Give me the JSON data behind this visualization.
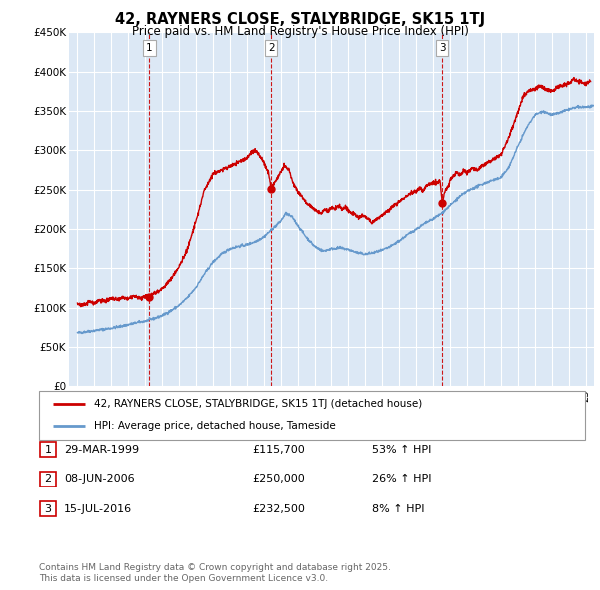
{
  "title": "42, RAYNERS CLOSE, STALYBRIDGE, SK15 1TJ",
  "subtitle": "Price paid vs. HM Land Registry's House Price Index (HPI)",
  "background_color": "#ffffff",
  "plot_bg_color": "#dce8f5",
  "grid_color": "#ffffff",
  "ylim": [
    0,
    450000
  ],
  "yticks": [
    0,
    50000,
    100000,
    150000,
    200000,
    250000,
    300000,
    350000,
    400000,
    450000
  ],
  "ytick_labels": [
    "£0",
    "£50K",
    "£100K",
    "£150K",
    "£200K",
    "£250K",
    "£300K",
    "£350K",
    "£400K",
    "£450K"
  ],
  "xlim_start": 1994.5,
  "xlim_end": 2025.5,
  "red_line_color": "#cc0000",
  "blue_line_color": "#6699cc",
  "blue_fill_color": "#dce8f5",
  "transactions": [
    {
      "num": 1,
      "date": "29-MAR-1999",
      "price": "115,700",
      "pct": "53%",
      "year": 1999.24
    },
    {
      "num": 2,
      "date": "08-JUN-2006",
      "price": "250,000",
      "pct": "26%",
      "year": 2006.44
    },
    {
      "num": 3,
      "date": "15-JUL-2016",
      "price": "232,500",
      "pct": "8%",
      "year": 2016.54
    }
  ],
  "legend_label_red": "42, RAYNERS CLOSE, STALYBRIDGE, SK15 1TJ (detached house)",
  "legend_label_blue": "HPI: Average price, detached house, Tameside",
  "footer1": "Contains HM Land Registry data © Crown copyright and database right 2025.",
  "footer2": "This data is licensed under the Open Government Licence v3.0.",
  "hpi_anchors": [
    [
      1995.0,
      68000
    ],
    [
      1995.5,
      69500
    ],
    [
      1996.0,
      71000
    ],
    [
      1996.5,
      72500
    ],
    [
      1997.0,
      74000
    ],
    [
      1997.5,
      76000
    ],
    [
      1998.0,
      78500
    ],
    [
      1998.5,
      81000
    ],
    [
      1999.0,
      83000
    ],
    [
      1999.5,
      86000
    ],
    [
      2000.0,
      90000
    ],
    [
      2000.5,
      96000
    ],
    [
      2001.0,
      103000
    ],
    [
      2001.5,
      113000
    ],
    [
      2002.0,
      126000
    ],
    [
      2002.5,
      143000
    ],
    [
      2003.0,
      158000
    ],
    [
      2003.5,
      168000
    ],
    [
      2004.0,
      175000
    ],
    [
      2004.5,
      178000
    ],
    [
      2005.0,
      180000
    ],
    [
      2005.5,
      184000
    ],
    [
      2006.0,
      190000
    ],
    [
      2006.5,
      200000
    ],
    [
      2007.0,
      210000
    ],
    [
      2007.3,
      220000
    ],
    [
      2007.7,
      215000
    ],
    [
      2008.0,
      205000
    ],
    [
      2008.5,
      190000
    ],
    [
      2009.0,
      178000
    ],
    [
      2009.5,
      172000
    ],
    [
      2010.0,
      175000
    ],
    [
      2010.5,
      176000
    ],
    [
      2011.0,
      174000
    ],
    [
      2011.5,
      170000
    ],
    [
      2012.0,
      168000
    ],
    [
      2012.5,
      170000
    ],
    [
      2013.0,
      173000
    ],
    [
      2013.5,
      178000
    ],
    [
      2014.0,
      185000
    ],
    [
      2014.5,
      193000
    ],
    [
      2015.0,
      200000
    ],
    [
      2015.5,
      207000
    ],
    [
      2016.0,
      213000
    ],
    [
      2016.5,
      220000
    ],
    [
      2017.0,
      230000
    ],
    [
      2017.5,
      240000
    ],
    [
      2018.0,
      248000
    ],
    [
      2018.5,
      253000
    ],
    [
      2019.0,
      258000
    ],
    [
      2019.5,
      262000
    ],
    [
      2020.0,
      265000
    ],
    [
      2020.5,
      280000
    ],
    [
      2021.0,
      305000
    ],
    [
      2021.5,
      328000
    ],
    [
      2022.0,
      345000
    ],
    [
      2022.5,
      350000
    ],
    [
      2023.0,
      345000
    ],
    [
      2023.5,
      348000
    ],
    [
      2024.0,
      352000
    ],
    [
      2024.5,
      355000
    ],
    [
      2025.0,
      355000
    ],
    [
      2025.5,
      356000
    ]
  ],
  "red_anchors": [
    [
      1995.0,
      105000
    ],
    [
      1995.3,
      103000
    ],
    [
      1995.7,
      108000
    ],
    [
      1996.0,
      106000
    ],
    [
      1996.3,
      110000
    ],
    [
      1996.7,
      108000
    ],
    [
      1997.0,
      112000
    ],
    [
      1997.3,
      110000
    ],
    [
      1997.7,
      113000
    ],
    [
      1998.0,
      111000
    ],
    [
      1998.3,
      115000
    ],
    [
      1998.7,
      112000
    ],
    [
      1999.0,
      114000
    ],
    [
      1999.24,
      115700
    ],
    [
      1999.5,
      118000
    ],
    [
      2000.0,
      124000
    ],
    [
      2000.5,
      136000
    ],
    [
      2001.0,
      152000
    ],
    [
      2001.5,
      175000
    ],
    [
      2002.0,
      210000
    ],
    [
      2002.5,
      250000
    ],
    [
      2003.0,
      270000
    ],
    [
      2003.5,
      275000
    ],
    [
      2004.0,
      280000
    ],
    [
      2004.5,
      285000
    ],
    [
      2005.0,
      290000
    ],
    [
      2005.3,
      298000
    ],
    [
      2005.5,
      300000
    ],
    [
      2005.7,
      295000
    ],
    [
      2006.0,
      285000
    ],
    [
      2006.3,
      270000
    ],
    [
      2006.44,
      250000
    ],
    [
      2006.6,
      258000
    ],
    [
      2007.0,
      272000
    ],
    [
      2007.2,
      280000
    ],
    [
      2007.5,
      275000
    ],
    [
      2007.7,
      260000
    ],
    [
      2008.0,
      248000
    ],
    [
      2008.3,
      240000
    ],
    [
      2008.6,
      232000
    ],
    [
      2009.0,
      225000
    ],
    [
      2009.2,
      222000
    ],
    [
      2009.4,
      220000
    ],
    [
      2009.6,
      225000
    ],
    [
      2009.8,
      222000
    ],
    [
      2010.0,
      228000
    ],
    [
      2010.2,
      225000
    ],
    [
      2010.4,
      230000
    ],
    [
      2010.6,
      225000
    ],
    [
      2010.8,
      228000
    ],
    [
      2011.0,
      224000
    ],
    [
      2011.2,
      220000
    ],
    [
      2011.4,
      218000
    ],
    [
      2011.6,
      215000
    ],
    [
      2011.8,
      218000
    ],
    [
      2012.0,
      215000
    ],
    [
      2012.2,
      212000
    ],
    [
      2012.4,
      208000
    ],
    [
      2012.6,
      212000
    ],
    [
      2012.8,
      215000
    ],
    [
      2013.0,
      218000
    ],
    [
      2013.3,
      222000
    ],
    [
      2013.6,
      228000
    ],
    [
      2014.0,
      235000
    ],
    [
      2014.3,
      240000
    ],
    [
      2014.6,
      245000
    ],
    [
      2015.0,
      248000
    ],
    [
      2015.2,
      252000
    ],
    [
      2015.4,
      248000
    ],
    [
      2015.6,
      255000
    ],
    [
      2015.8,
      258000
    ],
    [
      2016.0,
      260000
    ],
    [
      2016.2,
      258000
    ],
    [
      2016.4,
      262000
    ],
    [
      2016.54,
      232500
    ],
    [
      2016.7,
      248000
    ],
    [
      2016.9,
      255000
    ],
    [
      2017.0,
      262000
    ],
    [
      2017.2,
      268000
    ],
    [
      2017.4,
      272000
    ],
    [
      2017.6,
      268000
    ],
    [
      2017.8,
      275000
    ],
    [
      2018.0,
      272000
    ],
    [
      2018.3,
      278000
    ],
    [
      2018.6,
      275000
    ],
    [
      2019.0,
      282000
    ],
    [
      2019.5,
      288000
    ],
    [
      2020.0,
      295000
    ],
    [
      2020.5,
      318000
    ],
    [
      2021.0,
      348000
    ],
    [
      2021.3,
      368000
    ],
    [
      2021.6,
      375000
    ],
    [
      2022.0,
      378000
    ],
    [
      2022.3,
      382000
    ],
    [
      2022.6,
      378000
    ],
    [
      2023.0,
      375000
    ],
    [
      2023.3,
      380000
    ],
    [
      2023.6,
      382000
    ],
    [
      2024.0,
      385000
    ],
    [
      2024.3,
      390000
    ],
    [
      2024.6,
      388000
    ],
    [
      2025.0,
      385000
    ],
    [
      2025.3,
      388000
    ]
  ]
}
